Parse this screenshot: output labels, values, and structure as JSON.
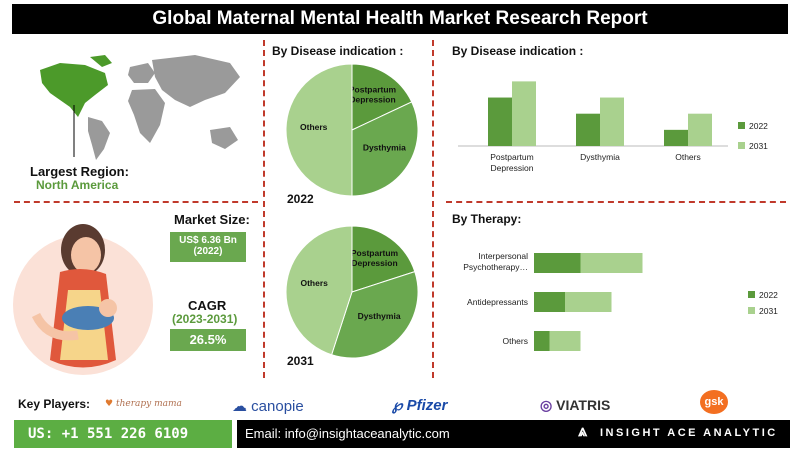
{
  "title": "Global Maternal Mental Health Market Research Report",
  "map": {
    "largest_region_label": "Largest Region:",
    "largest_region_value": "North America"
  },
  "market_size": {
    "label": "Market Size:",
    "value": "US$ 6.36 Bn",
    "year": "(2022)"
  },
  "cagr": {
    "label": "CAGR",
    "period": "(2023-2031)",
    "value": "26.5%"
  },
  "colors": {
    "dark_green": "#5b9a3c",
    "light_green": "#a9d18e",
    "mid_green": "#6aa84f",
    "red_dash": "#c0392b"
  },
  "pie_section": {
    "heading": "By Disease indication :"
  },
  "bar_section": {
    "heading": "By Disease indication :"
  },
  "therapy_section": {
    "heading": "By Therapy:"
  },
  "chart_data": [
    {
      "type": "pie",
      "year_label": "2022",
      "slices": [
        {
          "label": "Postpartum Depression",
          "value": 18,
          "color": "#5b9a3c"
        },
        {
          "label": "Dysthymia",
          "value": 32,
          "color": "#6aa84f"
        },
        {
          "label": "Others",
          "value": 50,
          "color": "#a9d18e"
        }
      ]
    },
    {
      "type": "pie",
      "year_label": "2031",
      "slices": [
        {
          "label": "Postpartum Depression",
          "value": 20,
          "color": "#5b9a3c"
        },
        {
          "label": "Dysthymia",
          "value": 35,
          "color": "#6aa84f"
        },
        {
          "label": "Others",
          "value": 45,
          "color": "#a9d18e"
        }
      ]
    },
    {
      "type": "bar",
      "categories": [
        "Postpartum Depression",
        "Dysthymia",
        "Others"
      ],
      "series": [
        {
          "name": "2022",
          "values": [
            45,
            30,
            15
          ],
          "color": "#5b9a3c"
        },
        {
          "name": "2031",
          "values": [
            60,
            45,
            30
          ],
          "color": "#a9d18e"
        }
      ],
      "ylim": [
        0,
        65
      ]
    },
    {
      "type": "bar",
      "orientation": "horizontal",
      "categories": [
        "Interpersonal Psychotherapy…",
        "Antidepressants",
        "Others"
      ],
      "series": [
        {
          "name": "2022",
          "values": [
            30,
            20,
            10
          ],
          "color": "#5b9a3c"
        },
        {
          "name": "2031",
          "values": [
            40,
            30,
            20
          ],
          "color": "#a9d18e"
        }
      ],
      "xlim": [
        0,
        75
      ]
    }
  ],
  "key_players": {
    "label": "Key Players:",
    "items": [
      "therapy mama",
      "canopie",
      "Pfizer",
      "VIATRIS",
      "gsk"
    ]
  },
  "footer": {
    "phone": "US: +1 551 226 6109",
    "email": "Email: info@insightaceanalytic.com",
    "brand": "INSIGHT ACE ANALYTIC"
  }
}
